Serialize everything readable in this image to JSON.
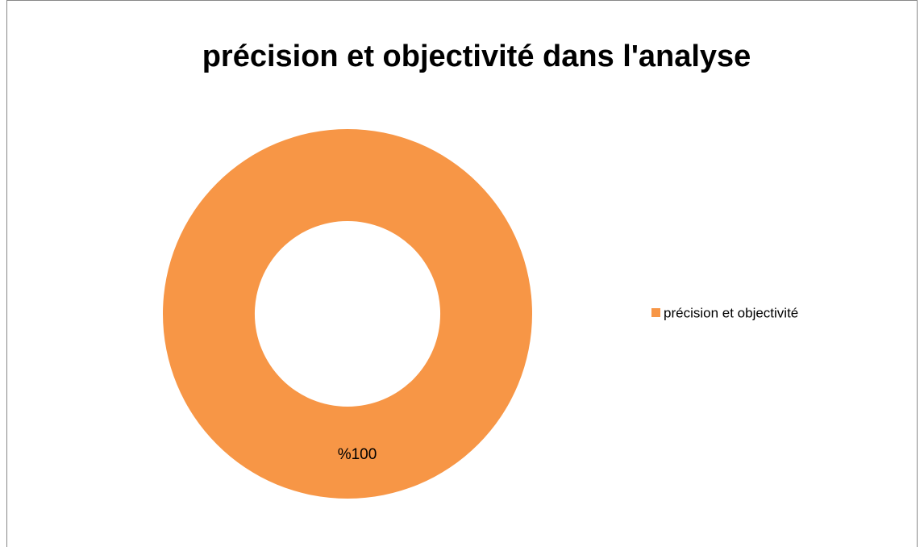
{
  "chart_data": {
    "type": "donut",
    "title": "précision et objectivité dans l'analyse",
    "categories": [
      "précision et objectivité"
    ],
    "values": [
      100
    ],
    "value_labels": [
      "%100"
    ],
    "colors": [
      "#f79646"
    ],
    "legend": "right"
  }
}
